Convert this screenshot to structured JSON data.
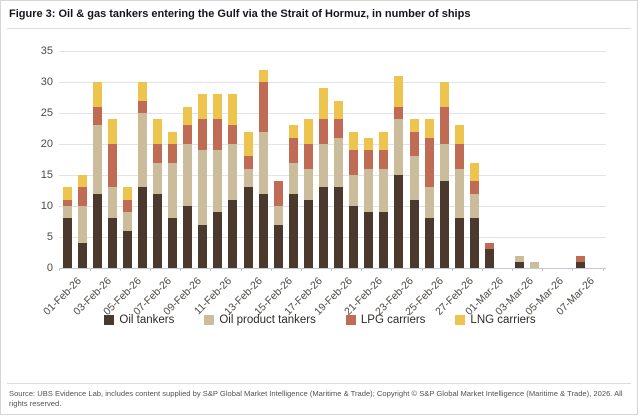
{
  "figure": {
    "title": "Figure 3: Oil & gas tankers entering the Gulf via the Strait of Hormuz, in number of ships"
  },
  "source": {
    "text": "Source: UBS Evidence Lab, includes content supplied by S&P Global Market Intelligence (Maritime & Trade); Copyright © S&P Global Market Intelligence (Maritime & Trade), 2026. All rights reserved."
  },
  "chart_data": {
    "type": "bar",
    "stacked": true,
    "title": "Figure 3: Oil & gas tankers entering the Gulf via the Strait of Hormuz, in number of ships",
    "xlabel": "",
    "ylabel": "",
    "ylim": [
      0,
      35
    ],
    "yticks": [
      0,
      5,
      10,
      15,
      20,
      25,
      30,
      35
    ],
    "grid": "horizontal",
    "legend_position": "bottom",
    "categories": [
      "01-Feb-26",
      "02-Feb-26",
      "03-Feb-26",
      "04-Feb-26",
      "05-Feb-26",
      "06-Feb-26",
      "07-Feb-26",
      "08-Feb-26",
      "09-Feb-26",
      "10-Feb-26",
      "11-Feb-26",
      "12-Feb-26",
      "13-Feb-26",
      "14-Feb-26",
      "15-Feb-26",
      "16-Feb-26",
      "17-Feb-26",
      "18-Feb-26",
      "19-Feb-26",
      "20-Feb-26",
      "21-Feb-26",
      "22-Feb-26",
      "23-Feb-26",
      "24-Feb-26",
      "25-Feb-26",
      "26-Feb-26",
      "27-Feb-26",
      "28-Feb-26",
      "01-Mar-26",
      "02-Mar-26",
      "03-Mar-26",
      "04-Mar-26",
      "05-Mar-26",
      "06-Mar-26",
      "07-Mar-26"
    ],
    "x_tick_labels": [
      "01-Feb-26",
      "03-Feb-26",
      "05-Feb-26",
      "07-Feb-26",
      "09-Feb-26",
      "11-Feb-26",
      "13-Feb-26",
      "15-Feb-26",
      "17-Feb-26",
      "19-Feb-26",
      "21-Feb-26",
      "23-Feb-26",
      "25-Feb-26",
      "27-Feb-26",
      "01-Mar-26",
      "03-Mar-26",
      "05-Mar-26",
      "07-Mar-26"
    ],
    "series": [
      {
        "name": "Oil tankers",
        "color": "#4a392c",
        "values": [
          8,
          4,
          12,
          8,
          6,
          13,
          12,
          8,
          10,
          7,
          9,
          11,
          13,
          12,
          7,
          12,
          11,
          13,
          13,
          10,
          9,
          9,
          15,
          11,
          8,
          14,
          8,
          8,
          3,
          0,
          1,
          0,
          0,
          0,
          1
        ]
      },
      {
        "name": "Oil product tankers",
        "color": "#cbbc9c",
        "values": [
          2,
          6,
          11,
          5,
          3,
          12,
          5,
          9,
          10,
          12,
          10,
          9,
          3,
          10,
          3,
          5,
          5,
          7,
          8,
          5,
          7,
          7,
          9,
          7,
          5,
          6,
          8,
          4,
          0,
          0,
          1,
          1,
          0,
          0,
          0
        ]
      },
      {
        "name": "LPG carriers",
        "color": "#c06b54",
        "values": [
          1,
          3,
          3,
          7,
          2,
          2,
          3,
          3,
          3,
          5,
          5,
          3,
          2,
          8,
          4,
          4,
          4,
          4,
          3,
          4,
          3,
          3,
          2,
          4,
          8,
          6,
          4,
          2,
          1,
          0,
          0,
          0,
          0,
          0,
          1
        ]
      },
      {
        "name": "LNG carriers",
        "color": "#edc44d",
        "values": [
          2,
          2,
          4,
          4,
          2,
          3,
          4,
          2,
          3,
          4,
          4,
          5,
          4,
          2,
          0,
          2,
          4,
          5,
          3,
          3,
          2,
          3,
          5,
          2,
          3,
          4,
          3,
          3,
          0,
          0,
          0,
          0,
          0,
          0,
          0
        ]
      }
    ]
  }
}
